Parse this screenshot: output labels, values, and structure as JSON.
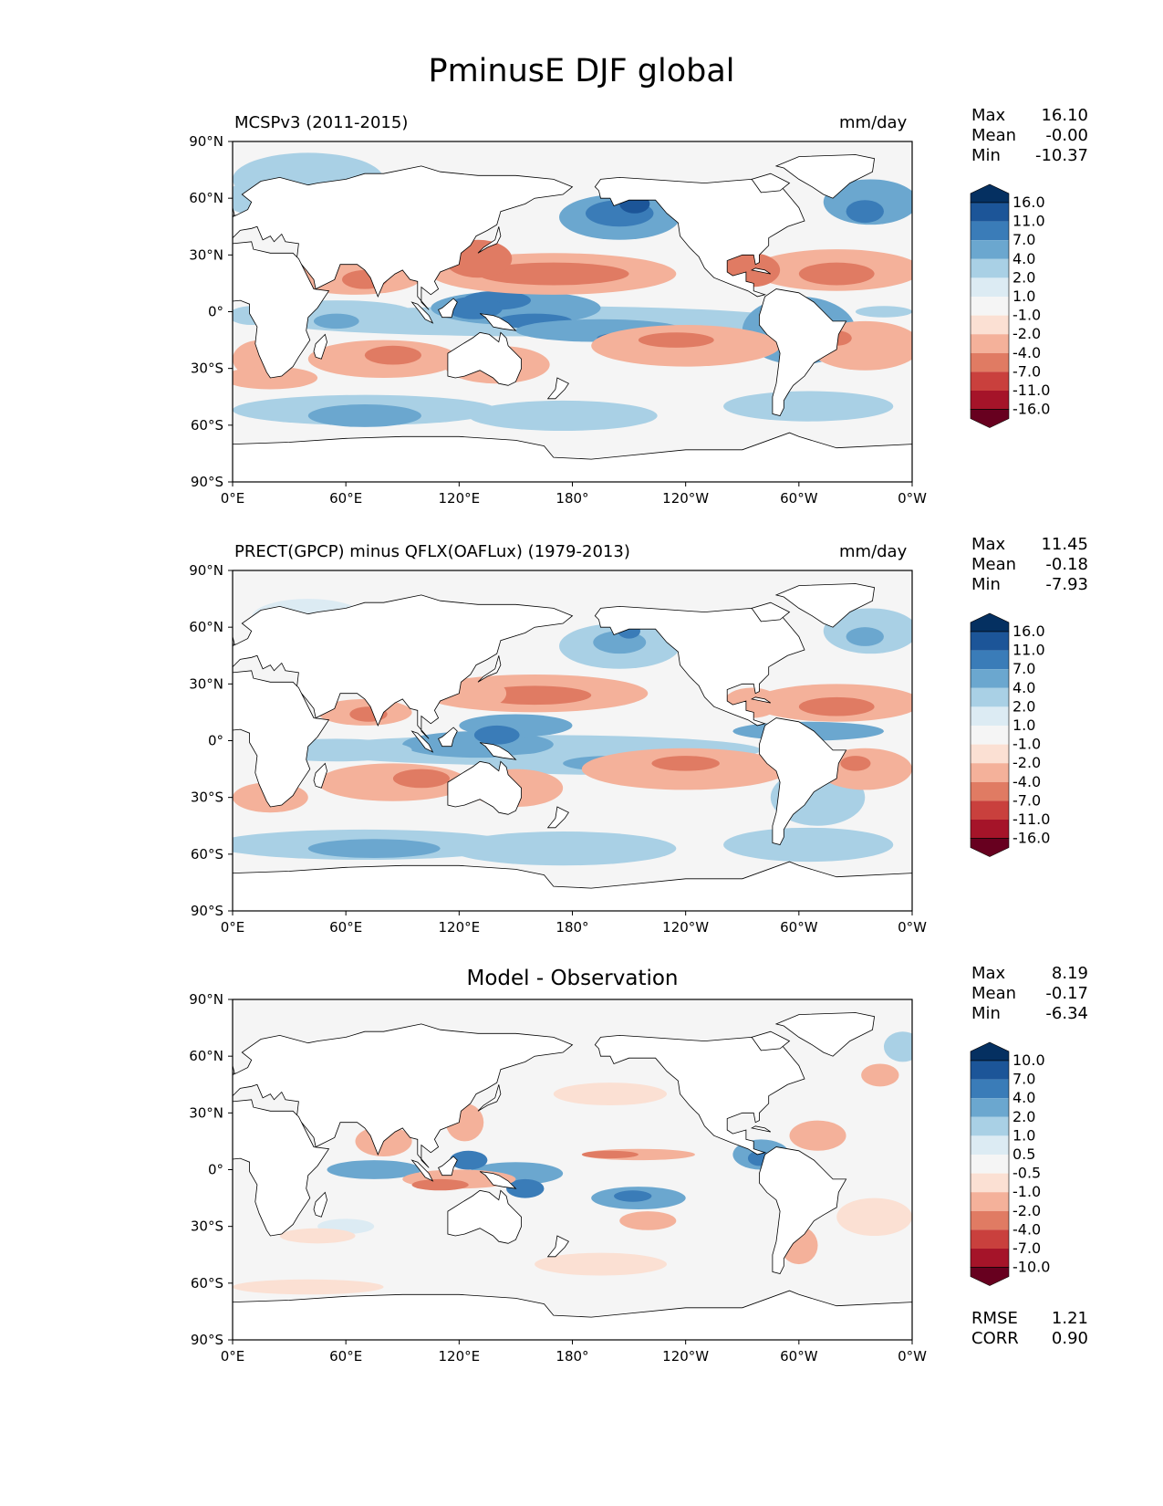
{
  "figure": {
    "title": "PminusE DJF global"
  },
  "panels": [
    {
      "left_title": "MCSPv3 (2011-2015)",
      "center_title": "",
      "units": "mm/day",
      "stats": {
        "max_label": "Max",
        "max": "16.10",
        "mean_label": "Mean",
        "mean": "-0.00",
        "min_label": "Min",
        "min": "-10.37"
      },
      "colorbar": [
        "16.0",
        "11.0",
        "7.0",
        "4.0",
        "2.0",
        "1.0",
        "-1.0",
        "-2.0",
        "-4.0",
        "-7.0",
        "-11.0",
        "-16.0"
      ]
    },
    {
      "left_title": "PRECT(GPCP) minus QFLX(OAFLux) (1979-2013)",
      "center_title": "",
      "units": "mm/day",
      "stats": {
        "max_label": "Max",
        "max": "11.45",
        "mean_label": "Mean",
        "mean": "-0.18",
        "min_label": "Min",
        "min": "-7.93"
      },
      "colorbar": [
        "16.0",
        "11.0",
        "7.0",
        "4.0",
        "2.0",
        "1.0",
        "-1.0",
        "-2.0",
        "-4.0",
        "-7.0",
        "-11.0",
        "-16.0"
      ]
    },
    {
      "left_title": "",
      "center_title": "Model - Observation",
      "units": "",
      "stats": {
        "max_label": "Max",
        "max": "8.19",
        "mean_label": "Mean",
        "mean": "-0.17",
        "min_label": "Min",
        "min": "-6.34"
      },
      "colorbar": [
        "10.0",
        "7.0",
        "4.0",
        "2.0",
        "1.0",
        "0.5",
        "-0.5",
        "-1.0",
        "-2.0",
        "-4.0",
        "-7.0",
        "-10.0"
      ]
    }
  ],
  "axes": {
    "lat_ticks": [
      "90°N",
      "60°N",
      "30°N",
      "0°",
      "30°S",
      "60°S",
      "90°S"
    ],
    "lon_ticks": [
      "0°E",
      "60°E",
      "120°E",
      "180°",
      "120°W",
      "60°W",
      "0°W"
    ]
  },
  "footer": {
    "rmse_label": "RMSE",
    "rmse": "1.21",
    "corr_label": "CORR",
    "corr": "0.90"
  },
  "colors": {
    "diverging": [
      "#67001f",
      "#a51429",
      "#c9403d",
      "#e07b63",
      "#f4b19a",
      "#fbe0d3",
      "#f5f5f5",
      "#dcebf3",
      "#a9d0e5",
      "#6ba7cf",
      "#3a7cb8",
      "#1c5598",
      "#053061"
    ],
    "land": "#ffffff",
    "coast": "#000000"
  }
}
